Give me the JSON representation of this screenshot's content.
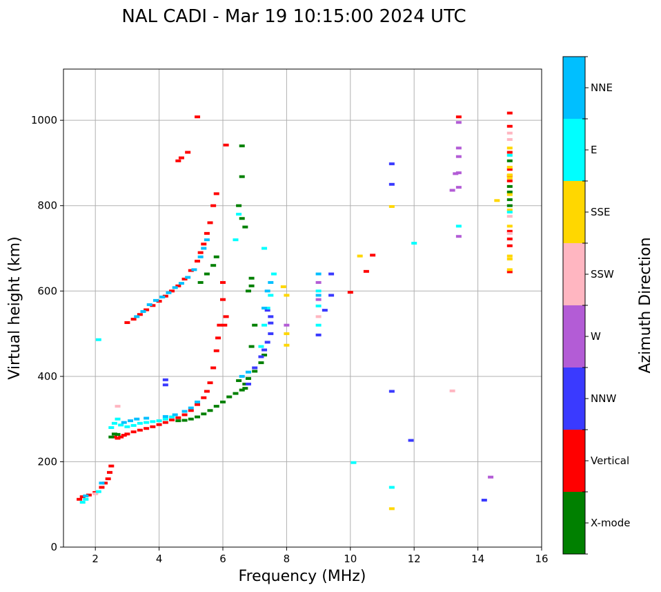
{
  "chart_data": {
    "type": "scatter",
    "title": "NAL CADI - Mar 19 10:15:00 2024 UTC",
    "xlabel": "Frequency (MHz)",
    "ylabel": "Virtual height (km)",
    "xlim": [
      1,
      16
    ],
    "ylim": [
      0,
      1120
    ],
    "xticks": [
      2,
      4,
      6,
      8,
      10,
      12,
      14,
      16
    ],
    "yticks": [
      0,
      200,
      400,
      600,
      800,
      1000
    ],
    "grid": true,
    "colorbar": {
      "label": "Azimuth Direction",
      "categories": [
        "X-mode",
        "Vertical",
        "NNW",
        "W",
        "SSW",
        "SSE",
        "E",
        "NNE"
      ],
      "colors": [
        "#008000",
        "#ff0000",
        "#3a3aff",
        "#b35cd6",
        "#ffb6c1",
        "#ffd700",
        "#00ffff",
        "#00bfff"
      ]
    },
    "series": [
      {
        "name": "Vertical",
        "points": [
          [
            1.5,
            112
          ],
          [
            1.6,
            118
          ],
          [
            1.8,
            122
          ],
          [
            2.0,
            128
          ],
          [
            2.2,
            140
          ],
          [
            2.3,
            150
          ],
          [
            2.4,
            160
          ],
          [
            2.45,
            175
          ],
          [
            2.5,
            190
          ],
          [
            2.6,
            258
          ],
          [
            2.7,
            255
          ],
          [
            2.8,
            258
          ],
          [
            2.9,
            262
          ],
          [
            3.0,
            265
          ],
          [
            3.2,
            270
          ],
          [
            3.4,
            274
          ],
          [
            3.6,
            278
          ],
          [
            3.8,
            282
          ],
          [
            4.0,
            287
          ],
          [
            4.2,
            292
          ],
          [
            4.4,
            298
          ],
          [
            4.6,
            303
          ],
          [
            4.8,
            310
          ],
          [
            5.0,
            320
          ],
          [
            5.2,
            334
          ],
          [
            5.4,
            350
          ],
          [
            5.5,
            365
          ],
          [
            5.6,
            385
          ],
          [
            5.7,
            420
          ],
          [
            5.8,
            460
          ],
          [
            5.85,
            490
          ],
          [
            5.9,
            520
          ],
          [
            3.0,
            526
          ],
          [
            3.2,
            534
          ],
          [
            3.4,
            545
          ],
          [
            3.6,
            556
          ],
          [
            3.8,
            566
          ],
          [
            4.0,
            576
          ],
          [
            4.2,
            588
          ],
          [
            4.4,
            600
          ],
          [
            4.6,
            612
          ],
          [
            4.8,
            628
          ],
          [
            5.0,
            648
          ],
          [
            5.2,
            670
          ],
          [
            5.3,
            690
          ],
          [
            5.4,
            710
          ],
          [
            5.5,
            735
          ],
          [
            5.6,
            760
          ],
          [
            5.7,
            800
          ],
          [
            5.8,
            828
          ],
          [
            4.6,
            905
          ],
          [
            4.7,
            912
          ],
          [
            4.9,
            925
          ],
          [
            5.2,
            1008
          ],
          [
            6.1,
            942
          ],
          [
            6.0,
            620
          ],
          [
            6.0,
            580
          ],
          [
            6.1,
            540
          ],
          [
            6.05,
            520
          ],
          [
            10.7,
            684
          ],
          [
            10.5,
            646
          ],
          [
            10.0,
            597
          ],
          [
            13.4,
            1008
          ],
          [
            15.0,
            1017
          ],
          [
            15.0,
            986
          ],
          [
            15.0,
            925
          ],
          [
            15.0,
            885
          ],
          [
            15.0,
            870
          ],
          [
            15.0,
            858
          ],
          [
            15.0,
            740
          ],
          [
            15.0,
            722
          ],
          [
            15.0,
            706
          ],
          [
            15.0,
            645
          ]
        ]
      },
      {
        "name": "X-mode",
        "points": [
          [
            4.6,
            296
          ],
          [
            4.8,
            297
          ],
          [
            5.0,
            300
          ],
          [
            5.2,
            305
          ],
          [
            5.4,
            312
          ],
          [
            5.6,
            320
          ],
          [
            5.8,
            330
          ],
          [
            6.0,
            340
          ],
          [
            6.2,
            352
          ],
          [
            6.4,
            360
          ],
          [
            6.6,
            368
          ],
          [
            6.7,
            382
          ],
          [
            6.8,
            395
          ],
          [
            7.0,
            412
          ],
          [
            7.2,
            432
          ],
          [
            7.3,
            450
          ],
          [
            6.5,
            390
          ],
          [
            6.7,
            372
          ],
          [
            6.9,
            470
          ],
          [
            7.0,
            520
          ],
          [
            5.3,
            620
          ],
          [
            5.5,
            640
          ],
          [
            5.7,
            660
          ],
          [
            5.8,
            680
          ],
          [
            6.5,
            800
          ],
          [
            6.6,
            770
          ],
          [
            6.7,
            750
          ],
          [
            6.6,
            940
          ],
          [
            6.6,
            868
          ],
          [
            6.9,
            630
          ],
          [
            6.9,
            612
          ],
          [
            6.8,
            600
          ],
          [
            2.7,
            264
          ],
          [
            2.6,
            265
          ],
          [
            2.5,
            258
          ],
          [
            15.0,
            905
          ],
          [
            15.0,
            845
          ],
          [
            15.0,
            832
          ],
          [
            15.0,
            814
          ],
          [
            15.0,
            800
          ]
        ]
      },
      {
        "name": "NNW",
        "points": [
          [
            6.8,
            382
          ],
          [
            7.0,
            420
          ],
          [
            7.2,
            446
          ],
          [
            7.3,
            462
          ],
          [
            7.4,
            480
          ],
          [
            7.5,
            500
          ],
          [
            7.5,
            525
          ],
          [
            7.5,
            540
          ],
          [
            7.4,
            555
          ],
          [
            9.0,
            497
          ],
          [
            9.2,
            555
          ],
          [
            9.4,
            640
          ],
          [
            9.4,
            590
          ],
          [
            11.3,
            898
          ],
          [
            11.3,
            850
          ],
          [
            11.3,
            365
          ],
          [
            11.9,
            250
          ],
          [
            14.2,
            110
          ],
          [
            4.2,
            380
          ],
          [
            4.2,
            392
          ]
        ]
      },
      {
        "name": "W",
        "points": [
          [
            13.4,
            995
          ],
          [
            13.4,
            935
          ],
          [
            13.4,
            915
          ],
          [
            13.4,
            877
          ],
          [
            13.3,
            875
          ],
          [
            13.2,
            836
          ],
          [
            13.4,
            843
          ],
          [
            13.4,
            728
          ],
          [
            14.4,
            164
          ],
          [
            8.0,
            520
          ],
          [
            9.0,
            620
          ],
          [
            9.0,
            580
          ]
        ]
      },
      {
        "name": "SSW",
        "points": [
          [
            13.2,
            366
          ],
          [
            15.0,
            970
          ],
          [
            15.0,
            955
          ],
          [
            15.0,
            775
          ],
          [
            15.0,
            735
          ],
          [
            9.0,
            540
          ],
          [
            2.0,
            125
          ],
          [
            2.7,
            330
          ]
        ]
      },
      {
        "name": "SSE",
        "points": [
          [
            15.0,
            935
          ],
          [
            15.0,
            890
          ],
          [
            15.0,
            872
          ],
          [
            15.0,
            865
          ],
          [
            15.0,
            826
          ],
          [
            15.0,
            790
          ],
          [
            15.0,
            752
          ],
          [
            15.0,
            682
          ],
          [
            15.0,
            675
          ],
          [
            15.0,
            650
          ],
          [
            14.6,
            812
          ],
          [
            11.3,
            798
          ],
          [
            11.3,
            90
          ],
          [
            10.3,
            682
          ],
          [
            8.0,
            590
          ],
          [
            8.0,
            500
          ],
          [
            8.0,
            473
          ],
          [
            7.9,
            610
          ]
        ]
      },
      {
        "name": "E",
        "points": [
          [
            2.8,
            286
          ],
          [
            3.0,
            282
          ],
          [
            3.2,
            285
          ],
          [
            3.4,
            290
          ],
          [
            3.6,
            292
          ],
          [
            3.8,
            294
          ],
          [
            4.0,
            296
          ],
          [
            4.2,
            300
          ],
          [
            4.4,
            305
          ],
          [
            2.6,
            290
          ],
          [
            2.7,
            300
          ],
          [
            2.5,
            280
          ],
          [
            1.6,
            105
          ],
          [
            1.7,
            112
          ],
          [
            2.1,
            130
          ],
          [
            7.2,
            470
          ],
          [
            7.3,
            520
          ],
          [
            7.4,
            560
          ],
          [
            7.5,
            590
          ],
          [
            7.6,
            640
          ],
          [
            7.3,
            700
          ],
          [
            9.0,
            600
          ],
          [
            9.0,
            565
          ],
          [
            9.0,
            520
          ],
          [
            12.0,
            712
          ],
          [
            13.4,
            752
          ],
          [
            11.3,
            140
          ],
          [
            10.1,
            198
          ],
          [
            15.0,
            785
          ],
          [
            15.0,
            918
          ],
          [
            6.4,
            720
          ],
          [
            6.5,
            780
          ],
          [
            2.1,
            486
          ]
        ]
      },
      {
        "name": "NNE",
        "points": [
          [
            2.9,
            292
          ],
          [
            3.1,
            296
          ],
          [
            3.3,
            300
          ],
          [
            3.6,
            302
          ],
          [
            4.2,
            306
          ],
          [
            4.5,
            310
          ],
          [
            4.8,
            318
          ],
          [
            5.0,
            326
          ],
          [
            5.2,
            340
          ],
          [
            3.3,
            540
          ],
          [
            3.5,
            552
          ],
          [
            3.7,
            568
          ],
          [
            3.9,
            578
          ],
          [
            4.1,
            586
          ],
          [
            4.3,
            596
          ],
          [
            4.5,
            608
          ],
          [
            4.7,
            618
          ],
          [
            4.9,
            632
          ],
          [
            5.1,
            650
          ],
          [
            5.3,
            680
          ],
          [
            5.4,
            700
          ],
          [
            5.5,
            720
          ],
          [
            6.6,
            400
          ],
          [
            6.8,
            410
          ],
          [
            7.3,
            560
          ],
          [
            7.4,
            600
          ],
          [
            7.5,
            620
          ],
          [
            9.0,
            640
          ],
          [
            9.0,
            590
          ],
          [
            2.2,
            150
          ],
          [
            1.7,
            120
          ]
        ]
      }
    ]
  }
}
